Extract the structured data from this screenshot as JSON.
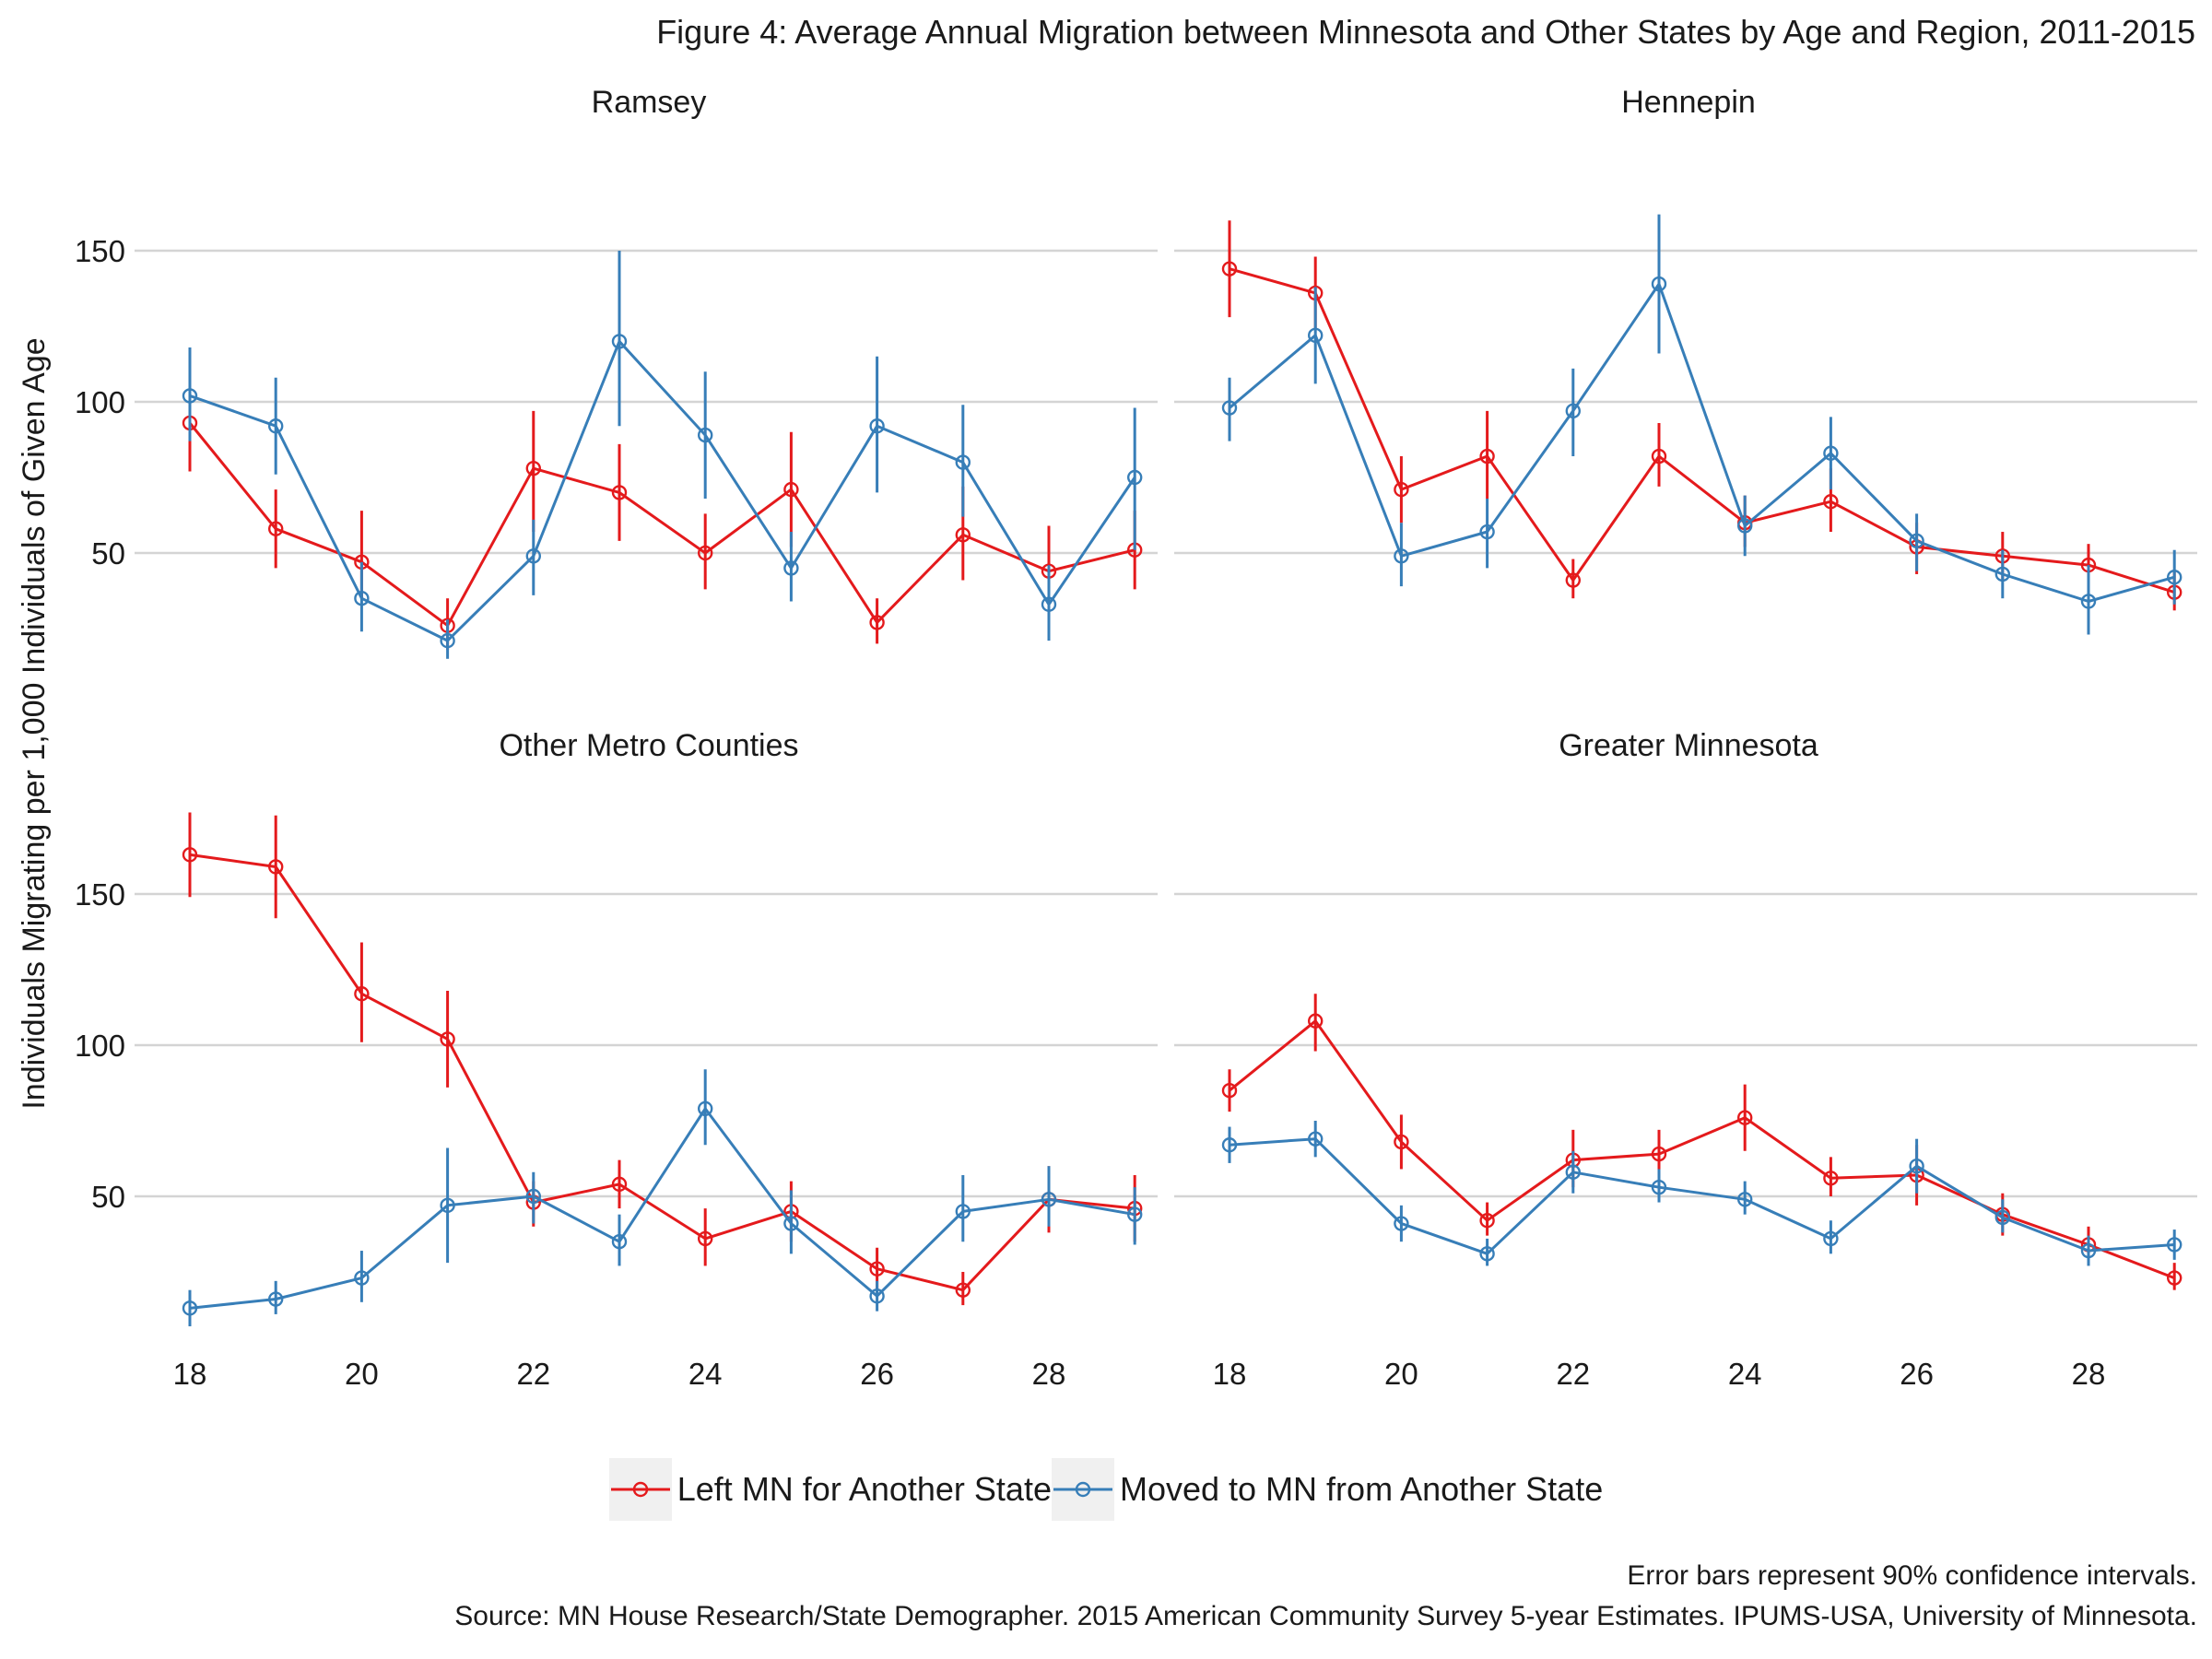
{
  "chart_data": {
    "type": "line",
    "title": "Figure 4: Average Annual Migration between Minnesota and Other States by Age and Region, 2011-2015",
    "ylabel": "Individuals Migrating per 1,000 Individuals of Given Age",
    "xlabel": "",
    "x": [
      18,
      19,
      20,
      21,
      22,
      23,
      24,
      25,
      26,
      27,
      28,
      29
    ],
    "x_ticks": [
      18,
      20,
      22,
      24,
      26,
      28
    ],
    "y_ticks": [
      50,
      100,
      150
    ],
    "ylim": [
      0,
      175
    ],
    "xlim": [
      17.8,
      29.2
    ],
    "grid": "horizontal",
    "legend_position": "bottom",
    "error_bars": "90% confidence intervals",
    "colors": {
      "left": "#E41A1C",
      "moved": "#377EB8"
    },
    "series_names": [
      "Left MN for Another State",
      "Moved to MN from Another State"
    ],
    "panels": [
      {
        "title": "Ramsey",
        "series": [
          {
            "name": "Left MN for Another State",
            "values": [
              93,
              58,
              47,
              26,
              78,
              70,
              50,
              71,
              27,
              56,
              44,
              51
            ],
            "lower": [
              77,
              45,
              35,
              18,
              57,
              54,
              38,
              52,
              20,
              41,
              31,
              38
            ],
            "upper": [
              110,
              71,
              64,
              35,
              97,
              86,
              63,
              90,
              35,
              72,
              59,
              64
            ]
          },
          {
            "name": "Moved to MN from Another State",
            "values": [
              102,
              92,
              35,
              21,
              49,
              120,
              89,
              45,
              92,
              80,
              33,
              75
            ],
            "lower": [
              87,
              76,
              24,
              15,
              36,
              92,
              68,
              34,
              70,
              62,
              21,
              51
            ],
            "upper": [
              118,
              108,
              47,
              28,
              61,
              150,
              110,
              57,
              115,
              99,
              46,
              98
            ]
          }
        ]
      },
      {
        "title": "Hennepin",
        "series": [
          {
            "name": "Left MN for Another State",
            "values": [
              144,
              136,
              71,
              82,
              41,
              82,
              60,
              67,
              52,
              49,
              46,
              37
            ],
            "lower": [
              128,
              124,
              60,
              68,
              35,
              72,
              52,
              57,
              43,
              41,
              39,
              31
            ],
            "upper": [
              160,
              148,
              82,
              97,
              48,
              93,
              69,
              78,
              60,
              57,
              53,
              44
            ]
          },
          {
            "name": "Moved to MN from Another State",
            "values": [
              98,
              122,
              49,
              57,
              97,
              139,
              59,
              83,
              54,
              43,
              34,
              42
            ],
            "lower": [
              87,
              106,
              39,
              45,
              82,
              116,
              49,
              71,
              44,
              35,
              23,
              33
            ],
            "upper": [
              108,
              138,
              60,
              68,
              111,
              162,
              69,
              95,
              63,
              51,
              46,
              51
            ]
          }
        ]
      },
      {
        "title": "Other Metro Counties",
        "series": [
          {
            "name": "Left MN for Another State",
            "values": [
              163,
              159,
              117,
              102,
              48,
              54,
              36,
              45,
              26,
              19,
              49,
              46
            ],
            "lower": [
              149,
              142,
              101,
              86,
              40,
              46,
              27,
              35,
              19,
              14,
              38,
              35
            ],
            "upper": [
              177,
              176,
              134,
              118,
              55,
              62,
              46,
              55,
              33,
              25,
              60,
              57
            ]
          },
          {
            "name": "Moved to MN from Another State",
            "values": [
              13,
              16,
              23,
              47,
              50,
              35,
              79,
              41,
              17,
              45,
              49,
              44
            ],
            "lower": [
              7,
              11,
              15,
              28,
              41,
              27,
              67,
              31,
              12,
              35,
              40,
              34
            ],
            "upper": [
              19,
              22,
              32,
              66,
              58,
              44,
              92,
              52,
              22,
              57,
              60,
              53
            ]
          }
        ]
      },
      {
        "title": "Greater Minnesota",
        "series": [
          {
            "name": "Left MN for Another State",
            "values": [
              85,
              108,
              68,
              42,
              62,
              64,
              76,
              56,
              57,
              44,
              34,
              23
            ],
            "lower": [
              78,
              98,
              59,
              37,
              53,
              56,
              65,
              50,
              47,
              37,
              29,
              19
            ],
            "upper": [
              92,
              117,
              77,
              48,
              72,
              72,
              87,
              63,
              67,
              51,
              40,
              28
            ]
          },
          {
            "name": "Moved to MN from Another State",
            "values": [
              67,
              69,
              41,
              31,
              58,
              53,
              49,
              36,
              60,
              43,
              32,
              34
            ],
            "lower": [
              61,
              63,
              35,
              27,
              51,
              48,
              44,
              31,
              51,
              38,
              27,
              29
            ],
            "upper": [
              73,
              75,
              47,
              36,
              65,
              59,
              55,
              42,
              69,
              49,
              37,
              39
            ]
          }
        ]
      }
    ]
  },
  "legend": {
    "left_label": "Left MN for Another State",
    "moved_label": "Moved to MN from Another State"
  },
  "caption": {
    "line1": "Error bars represent 90% confidence intervals.",
    "line2": "Source: MN House Research/State Demographer. 2015 American Community Survey 5-year Estimates. IPUMS-USA, University of Minnesota."
  }
}
